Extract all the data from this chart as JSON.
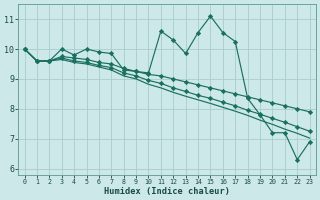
{
  "xlabel": "Humidex (Indice chaleur)",
  "bg_color": "#cce8e8",
  "grid_color": "#aacccc",
  "line_color": "#1a7060",
  "marker_color": "#1a7060",
  "x_values": [
    0,
    1,
    2,
    3,
    4,
    5,
    6,
    7,
    8,
    9,
    10,
    11,
    12,
    13,
    14,
    15,
    16,
    17,
    18,
    19,
    20,
    21,
    22,
    23
  ],
  "series1": [
    10.0,
    9.6,
    9.6,
    10.0,
    9.8,
    10.0,
    9.9,
    9.85,
    9.3,
    9.25,
    9.2,
    10.6,
    10.3,
    9.85,
    10.55,
    11.1,
    10.55,
    10.25,
    8.35,
    7.8,
    7.2,
    7.2,
    6.3,
    6.9
  ],
  "series2": [
    10.0,
    9.6,
    9.6,
    9.75,
    9.7,
    9.65,
    9.55,
    9.5,
    9.35,
    9.25,
    9.15,
    9.1,
    9.0,
    8.9,
    8.8,
    8.7,
    8.6,
    8.5,
    8.4,
    8.3,
    8.2,
    8.1,
    8.0,
    7.9
  ],
  "series3": [
    10.0,
    9.6,
    9.6,
    9.7,
    9.6,
    9.55,
    9.45,
    9.38,
    9.2,
    9.1,
    8.95,
    8.85,
    8.7,
    8.58,
    8.45,
    8.35,
    8.22,
    8.1,
    7.95,
    7.82,
    7.68,
    7.55,
    7.4,
    7.25
  ],
  "series4": [
    10.0,
    9.6,
    9.6,
    9.65,
    9.55,
    9.5,
    9.4,
    9.3,
    9.1,
    9.0,
    8.82,
    8.7,
    8.55,
    8.42,
    8.3,
    8.18,
    8.05,
    7.92,
    7.78,
    7.62,
    7.48,
    7.32,
    7.18,
    7.02
  ],
  "xlim": [
    -0.5,
    23.5
  ],
  "ylim": [
    5.8,
    11.5
  ],
  "yticks": [
    6,
    7,
    8,
    9,
    10,
    11
  ],
  "xticks": [
    0,
    1,
    2,
    3,
    4,
    5,
    6,
    7,
    8,
    9,
    10,
    11,
    12,
    13,
    14,
    15,
    16,
    17,
    18,
    19,
    20,
    21,
    22,
    23
  ]
}
